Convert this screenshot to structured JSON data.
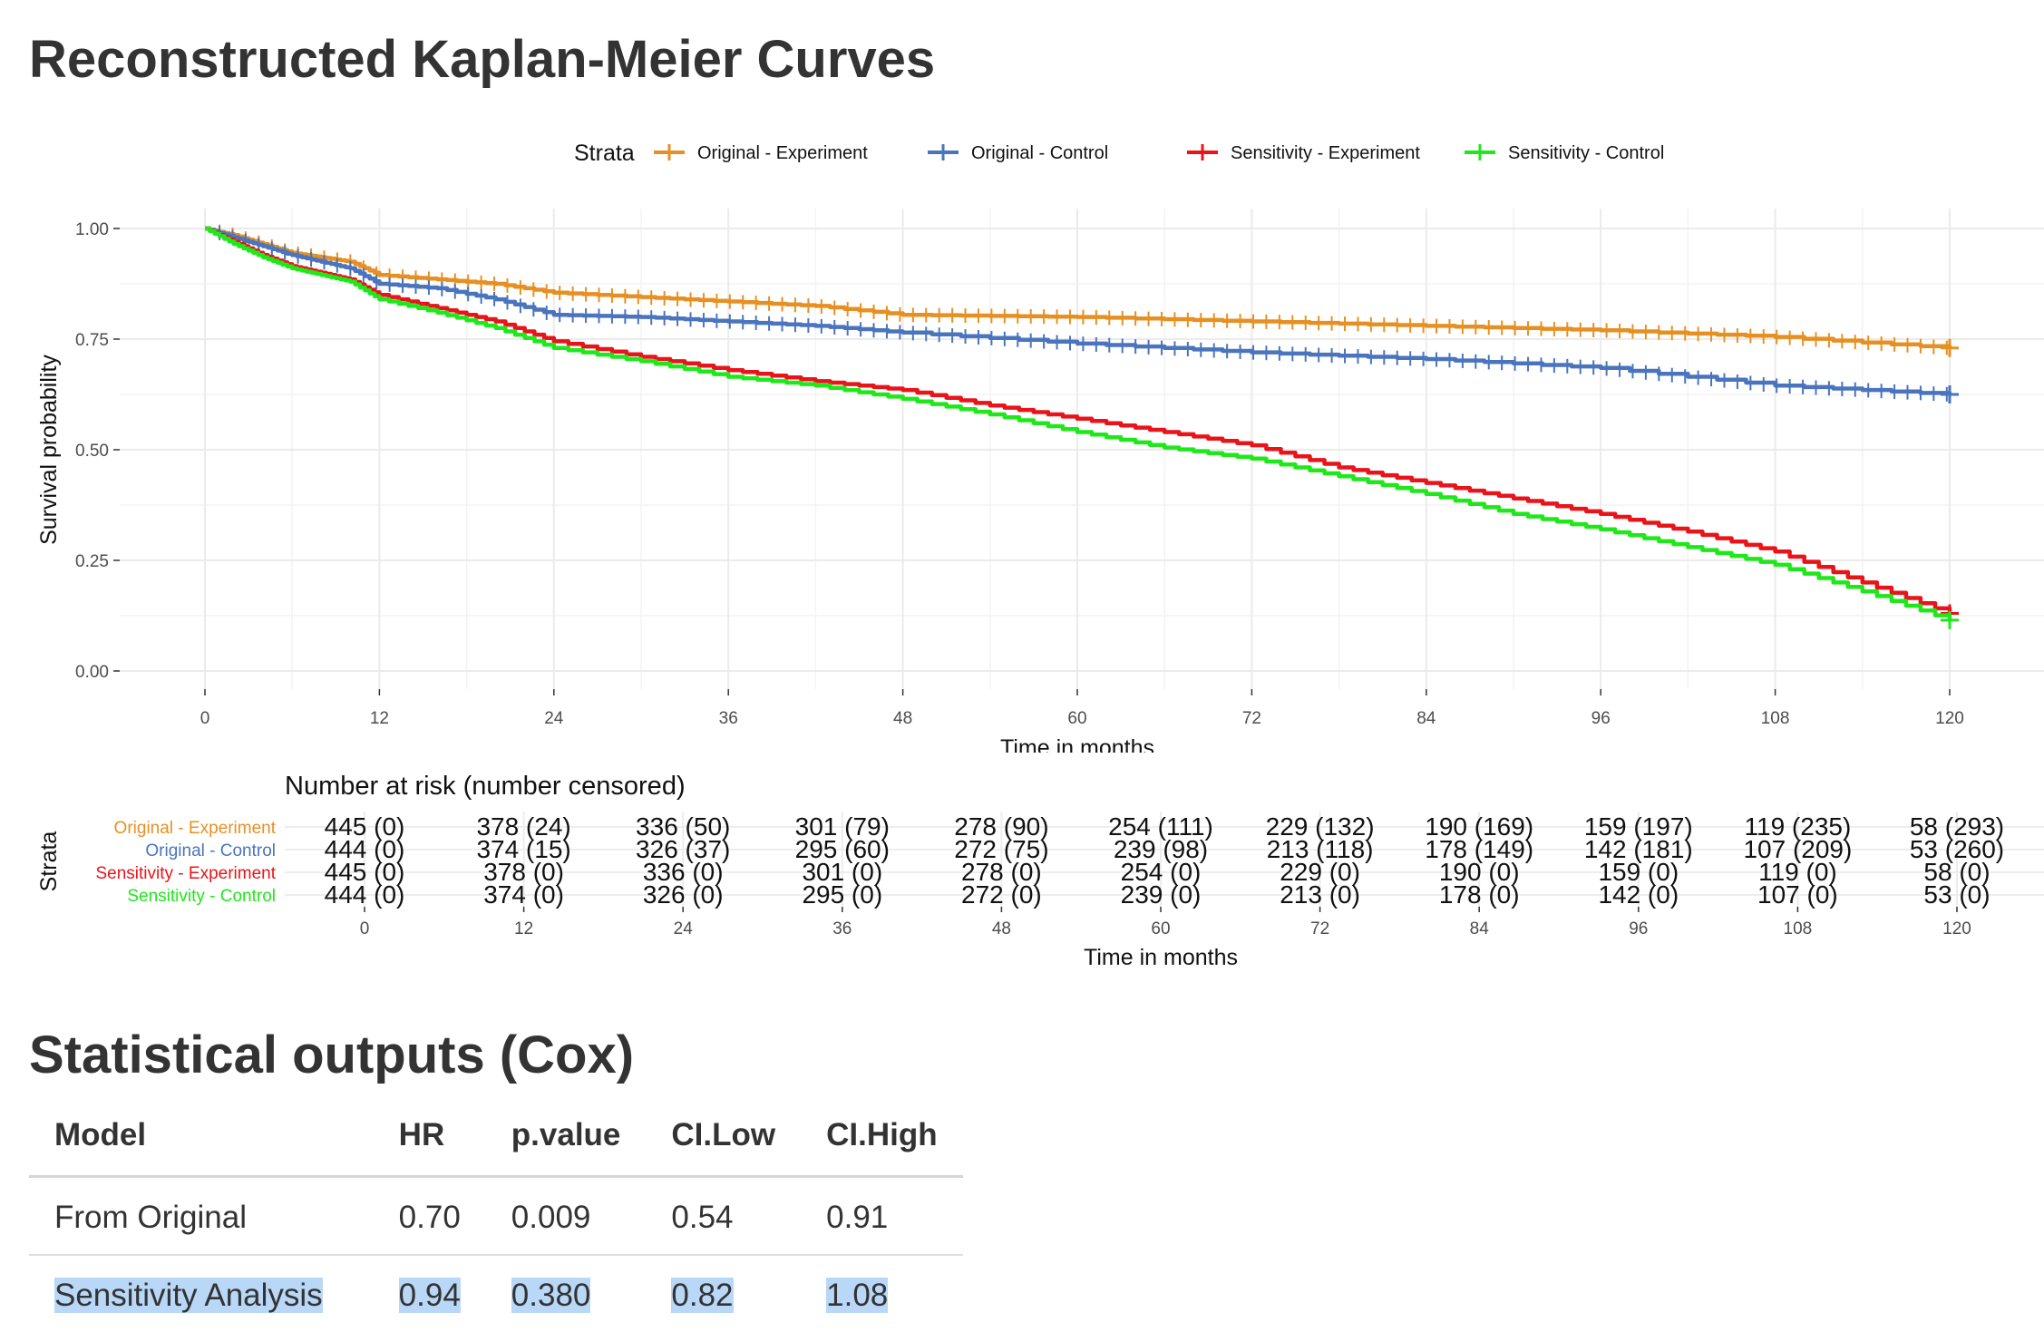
{
  "titles": {
    "main": "Reconstructed Kaplan-Meier Curves",
    "stats": "Statistical outputs (Cox)"
  },
  "chart_data": [
    {
      "type": "line",
      "title": "Reconstructed Kaplan-Meier Curves",
      "xlabel": "Time in months",
      "ylabel": "Survival probability",
      "xlim": [
        0,
        120
      ],
      "ylim": [
        0,
        1
      ],
      "xticks": [
        0,
        12,
        24,
        36,
        48,
        60,
        72,
        84,
        96,
        108,
        120
      ],
      "yticks": [
        0,
        0.25,
        0.5,
        0.75,
        1.0
      ],
      "ytick_labels": [
        "0.00",
        "0.25",
        "0.50",
        "0.75",
        "1.00"
      ],
      "grid": true,
      "legend_title": "Strata",
      "legend_position": "top",
      "series": [
        {
          "name": "Original - Experiment",
          "color": "#E69023",
          "censor_marks": true,
          "x": [
            0,
            2,
            4,
            6,
            8,
            10,
            12,
            16,
            20,
            24,
            30,
            36,
            42,
            48,
            60,
            72,
            84,
            96,
            108,
            120
          ],
          "values": [
            1.0,
            0.985,
            0.965,
            0.945,
            0.935,
            0.925,
            0.895,
            0.885,
            0.875,
            0.855,
            0.845,
            0.835,
            0.825,
            0.805,
            0.8,
            0.79,
            0.78,
            0.77,
            0.755,
            0.73
          ]
        },
        {
          "name": "Original - Control",
          "color": "#4A74BD",
          "censor_marks": true,
          "x": [
            0,
            2,
            4,
            6,
            8,
            10,
            12,
            16,
            20,
            24,
            30,
            36,
            42,
            48,
            60,
            72,
            84,
            96,
            108,
            120
          ],
          "values": [
            1.0,
            0.98,
            0.96,
            0.94,
            0.925,
            0.91,
            0.875,
            0.865,
            0.84,
            0.805,
            0.8,
            0.79,
            0.78,
            0.765,
            0.74,
            0.72,
            0.705,
            0.685,
            0.645,
            0.625
          ]
        },
        {
          "name": "Sensitivity - Experiment",
          "color": "#E8141A",
          "censor_marks": false,
          "x": [
            0,
            2,
            4,
            6,
            8,
            10,
            12,
            16,
            20,
            24,
            30,
            36,
            42,
            48,
            54,
            60,
            66,
            72,
            78,
            84,
            90,
            96,
            102,
            108,
            114,
            120
          ],
          "values": [
            1.0,
            0.97,
            0.94,
            0.915,
            0.9,
            0.885,
            0.85,
            0.82,
            0.79,
            0.745,
            0.71,
            0.68,
            0.655,
            0.635,
            0.6,
            0.57,
            0.54,
            0.51,
            0.46,
            0.425,
            0.39,
            0.355,
            0.315,
            0.27,
            0.2,
            0.13
          ]
        },
        {
          "name": "Sensitivity - Control",
          "color": "#1FE81A",
          "censor_marks": false,
          "x": [
            0,
            2,
            4,
            6,
            8,
            10,
            12,
            16,
            20,
            24,
            30,
            36,
            42,
            48,
            54,
            60,
            66,
            72,
            78,
            84,
            90,
            96,
            102,
            108,
            114,
            120
          ],
          "values": [
            1.0,
            0.965,
            0.935,
            0.91,
            0.895,
            0.88,
            0.84,
            0.81,
            0.775,
            0.73,
            0.7,
            0.665,
            0.645,
            0.615,
            0.58,
            0.54,
            0.505,
            0.48,
            0.44,
            0.4,
            0.355,
            0.32,
            0.28,
            0.24,
            0.18,
            0.115
          ]
        }
      ]
    },
    {
      "type": "table",
      "title": "Number at risk (number censored)",
      "xlabel": "Time in months",
      "ylabel": "Strata",
      "times": [
        0,
        12,
        24,
        36,
        48,
        60,
        72,
        84,
        96,
        108,
        120
      ],
      "rows": [
        {
          "name": "Original - Experiment",
          "color": "#E69023",
          "values": [
            "445 (0)",
            "378 (24)",
            "336 (50)",
            "301 (79)",
            "278 (90)",
            "254 (111)",
            "229 (132)",
            "190 (169)",
            "159 (197)",
            "119 (235)",
            "58 (293)"
          ]
        },
        {
          "name": "Original - Control",
          "color": "#4A74BD",
          "values": [
            "444 (0)",
            "374 (15)",
            "326 (37)",
            "295 (60)",
            "272 (75)",
            "239 (98)",
            "213 (118)",
            "178 (149)",
            "142 (181)",
            "107 (209)",
            "53 (260)"
          ]
        },
        {
          "name": "Sensitivity - Experiment",
          "color": "#E8141A",
          "values": [
            "445 (0)",
            "378 (0)",
            "336 (0)",
            "301 (0)",
            "278 (0)",
            "254 (0)",
            "229 (0)",
            "190 (0)",
            "159 (0)",
            "119 (0)",
            "58 (0)"
          ]
        },
        {
          "name": "Sensitivity - Control",
          "color": "#1FE81A",
          "values": [
            "444 (0)",
            "374 (0)",
            "326 (0)",
            "295 (0)",
            "272 (0)",
            "239 (0)",
            "213 (0)",
            "178 (0)",
            "142 (0)",
            "107 (0)",
            "53 (0)"
          ]
        }
      ]
    }
  ],
  "stats_table": {
    "headers": [
      "Model",
      "HR",
      "p.value",
      "CI.Low",
      "CI.High"
    ],
    "rows": [
      {
        "model": "From Original",
        "hr": "0.70",
        "p": "0.009",
        "cil": "0.54",
        "cih": "0.91"
      },
      {
        "model": "Sensitivity Analysis",
        "hr": "0.94",
        "p": "0.380",
        "cil": "0.82",
        "cih": "1.08"
      }
    ]
  }
}
